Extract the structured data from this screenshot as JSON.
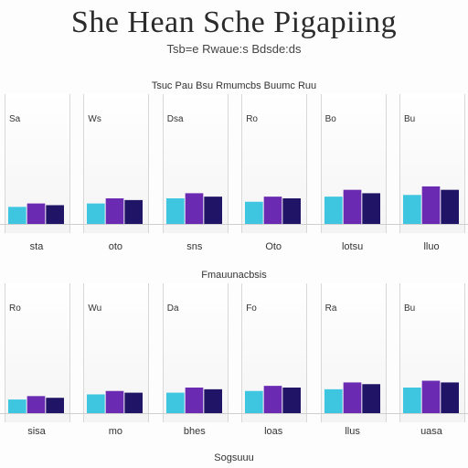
{
  "title": "She Hean Sche Pigapiing",
  "subtitle": "Tsb=e  Rwaue:s  Bdsde:ds",
  "chart_data": [
    {
      "type": "bar",
      "title": "",
      "header": "Tsuc  Pau  Bsu  Rmumcbs  Buumc  Ruu",
      "categories": [
        "sta",
        "oto",
        "sns",
        "Oto",
        "lotsu",
        "lluo"
      ],
      "series": [
        {
          "name": "",
          "color": "#3ec6e0",
          "values": [
            1.0,
            1.2,
            1.5,
            1.3,
            1.6,
            1.7
          ]
        },
        {
          "name": "",
          "color": "#6a2bb2",
          "values": [
            1.2,
            1.5,
            1.8,
            1.6,
            2.0,
            2.2
          ]
        },
        {
          "name": "",
          "color": "#1f1466",
          "values": [
            1.1,
            1.4,
            1.6,
            1.5,
            1.8,
            2.0
          ]
        }
      ],
      "ylim": [
        0,
        6
      ],
      "panel_labels": [
        "Sa",
        "Ws",
        "Dsa",
        "Ro",
        "Bo",
        "Bu"
      ]
    },
    {
      "type": "bar",
      "title": "",
      "header": "Fmauunacbsis",
      "categories": [
        "sisa",
        "mo",
        "bhes",
        "loas",
        "llus",
        "uasa"
      ],
      "series": [
        {
          "name": "",
          "color": "#3ec6e0",
          "values": [
            0.8,
            1.1,
            1.2,
            1.3,
            1.4,
            1.5
          ]
        },
        {
          "name": "",
          "color": "#6a2bb2",
          "values": [
            1.0,
            1.3,
            1.5,
            1.6,
            1.8,
            1.9
          ]
        },
        {
          "name": "",
          "color": "#1f1466",
          "values": [
            0.9,
            1.2,
            1.4,
            1.5,
            1.7,
            1.8
          ]
        }
      ],
      "ylim": [
        0,
        6
      ],
      "panel_labels": [
        "Ro",
        "Wu",
        "Da",
        "Fo",
        "Ra",
        "Bu"
      ]
    }
  ],
  "footer": "Sogsuuu"
}
